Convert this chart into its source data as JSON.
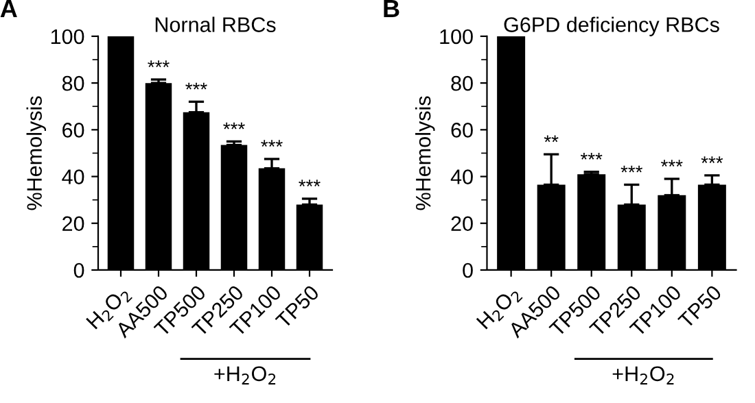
{
  "chart_data": [
    {
      "type": "bar",
      "title": "Nornal RBCs",
      "ylabel": "%Hemolysis",
      "categories": [
        "H$_{2}$O$_{2}$",
        "AA500",
        "TP500",
        "TP250",
        "TP100",
        "TP50"
      ],
      "values": [
        100,
        80,
        67.5,
        53.5,
        43.5,
        28
      ],
      "errors": [
        null,
        1.5,
        4.5,
        1.5,
        4,
        2.5
      ],
      "color": "#000000",
      "ylim": [
        0,
        100
      ],
      "yticks": [
        0,
        {
          "value": 10,
          "label": null
        },
        20,
        {
          "value": 30,
          "label": null
        },
        40,
        {
          "value": 50,
          "label": null
        },
        60,
        {
          "value": 70,
          "label": null
        },
        80,
        {
          "value": 90,
          "label": null
        },
        100
      ],
      "grid": false,
      "legend": false,
      "annotations": [
        "A",
        "+H$_{2}$O$_{2}$",
        {
          "text": "***",
          "x": "AA500",
          "y": 81.5
        },
        {
          "text": "***",
          "x": "TP500",
          "y": 72
        },
        {
          "text": "***",
          "x": "TP250",
          "y": 55
        },
        {
          "text": "***",
          "x": "TP100",
          "y": 47.5
        },
        {
          "text": "***",
          "x": "TP50",
          "y": 30.5
        }
      ]
    },
    {
      "type": "bar",
      "title": "G6PD deficiency RBCs",
      "ylabel": "%Hemolysis",
      "categories": [
        "H$_{2}$O$_{2}$",
        "AA500",
        "TP500",
        "TP250",
        "TP100",
        "TP50"
      ],
      "values": [
        100,
        36.5,
        41,
        28,
        32,
        36.5
      ],
      "errors": [
        null,
        13,
        1,
        8.5,
        7,
        4
      ],
      "color": "#000000",
      "ylim": [
        0,
        100
      ],
      "yticks": [
        0,
        {
          "value": 10,
          "label": null
        },
        20,
        {
          "value": 30,
          "label": null
        },
        40,
        {
          "value": 50,
          "label": null
        },
        60,
        {
          "value": 70,
          "label": null
        },
        80,
        {
          "value": 90,
          "label": null
        },
        100
      ],
      "grid": false,
      "legend": false,
      "annotations": [
        "B",
        "+H$_{2}$O$_{2}$",
        {
          "text": "**",
          "x": "AA500",
          "y": 49.5
        },
        {
          "text": "***",
          "x": "TP500",
          "y": 42
        },
        {
          "text": "***",
          "x": "TP250",
          "y": 36.5
        },
        {
          "text": "***",
          "x": "TP100",
          "y": 39
        },
        {
          "text": "***",
          "x": "TP50",
          "y": 40.5
        }
      ]
    }
  ]
}
